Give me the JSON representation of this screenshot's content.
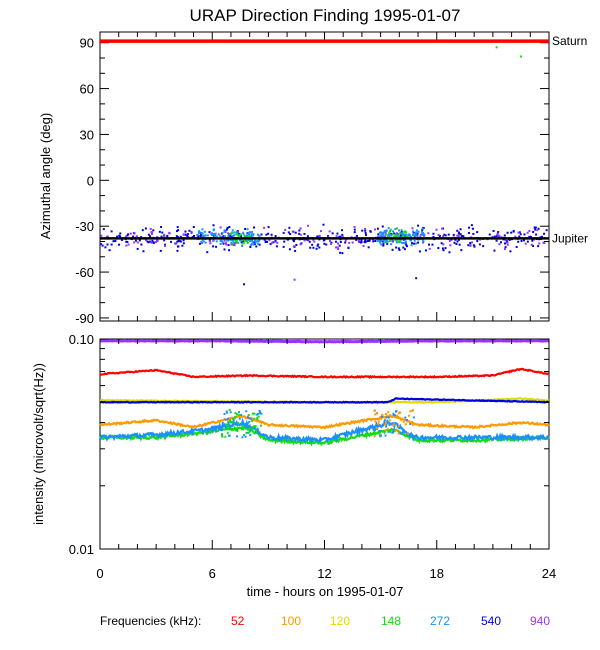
{
  "chart_data": {
    "title": "URAP Direction Finding  1995-01-07",
    "xlabel": "time - hours on 1995-01-07",
    "xlim": [
      0,
      24
    ],
    "xticks": [
      "0",
      "6",
      "12",
      "18",
      "24"
    ],
    "panels": [
      {
        "type": "scatter",
        "ylabel": "Azimuthal angle (deg)",
        "ylim": [
          -92,
          97
        ],
        "yticks": [
          "90",
          "60",
          "30",
          "0",
          "-30",
          "-60",
          "-90"
        ],
        "reference_lines": [
          {
            "label": "Saturn",
            "y": 91,
            "color": "#ff0000"
          },
          {
            "label": "Jupiter",
            "y": -38,
            "color": "#000000"
          }
        ],
        "scatter_clusters": [
          {
            "x_range": [
              0,
              24
            ],
            "y_center": -38,
            "spread": 7,
            "count": 420,
            "color": "#0000dd"
          },
          {
            "x_range": [
              0,
              24
            ],
            "y_center": -38,
            "spread": 6,
            "count": 160,
            "color": "#9933ff"
          },
          {
            "x_range": [
              5.2,
              8.6
            ],
            "y_center": -38,
            "spread": 5,
            "count": 120,
            "color": "#1a90ff"
          },
          {
            "x_range": [
              14.8,
              17.4
            ],
            "y_center": -37,
            "spread": 5,
            "count": 120,
            "color": "#1a90ff"
          },
          {
            "x_range": [
              7,
              8
            ],
            "y_center": -38,
            "spread": 4,
            "count": 30,
            "color": "#11dd11"
          },
          {
            "x_range": [
              15.3,
              16.4
            ],
            "y_center": -37,
            "spread": 4,
            "count": 25,
            "color": "#11dd11"
          }
        ],
        "outliers": [
          {
            "x": 21.2,
            "y": 87,
            "color": "#11dd11"
          },
          {
            "x": 22.5,
            "y": 81,
            "color": "#11dd11"
          },
          {
            "x": 7.7,
            "y": -68,
            "color": "#0000dd"
          },
          {
            "x": 10.4,
            "y": -65,
            "color": "#9933ff"
          },
          {
            "x": 16.9,
            "y": -64,
            "color": "#0000dd"
          }
        ]
      },
      {
        "type": "line",
        "ylabel": "intensity (microvolt/sqrt(Hz))",
        "yscale": "log",
        "ylim": [
          0.01,
          0.1
        ],
        "yticks": [
          "0.10",
          "0.01"
        ],
        "series": [
          {
            "name": "940",
            "color": "#9933ff",
            "x": [
              0,
              6,
              12,
              18,
              24
            ],
            "values": [
              0.098,
              0.098,
              0.097,
              0.098,
              0.098
            ]
          },
          {
            "name": "52",
            "color": "#ff0000",
            "x": [
              0,
              3,
              5,
              8,
              12,
              18,
              21,
              22.5,
              24
            ],
            "values": [
              0.068,
              0.071,
              0.066,
              0.067,
              0.066,
              0.066,
              0.067,
              0.072,
              0.068
            ]
          },
          {
            "name": "100",
            "color": "#ff9900",
            "x": [
              0,
              3,
              5,
              7.6,
              9,
              12,
              15.6,
              17,
              20,
              22.5,
              24
            ],
            "values": [
              0.039,
              0.041,
              0.038,
              0.043,
              0.039,
              0.038,
              0.043,
              0.039,
              0.038,
              0.04,
              0.039
            ]
          },
          {
            "name": "120",
            "color": "#dddd00",
            "x": [
              0,
              12,
              18,
              22.5,
              24
            ],
            "values": [
              0.051,
              0.05,
              0.05,
              0.052,
              0.051
            ]
          },
          {
            "name": "148",
            "color": "#11dd11",
            "x": [
              0,
              3,
              5.7,
              7.7,
              9,
              12,
              15.7,
              17,
              20,
              24
            ],
            "values": [
              0.034,
              0.034,
              0.036,
              0.038,
              0.033,
              0.032,
              0.037,
              0.033,
              0.033,
              0.034
            ]
          },
          {
            "name": "272",
            "color": "#1a90ff",
            "x": [
              0,
              3,
              5.8,
              7.6,
              9,
              12,
              15.6,
              16.8,
              20,
              24
            ],
            "values": [
              0.034,
              0.035,
              0.037,
              0.04,
              0.034,
              0.033,
              0.04,
              0.034,
              0.034,
              0.034
            ]
          },
          {
            "name": "540",
            "color": "#0000dd",
            "x": [
              0,
              12,
              15.4,
              15.8,
              24
            ],
            "values": [
              0.05,
              0.05,
              0.05,
              0.052,
              0.05
            ]
          }
        ]
      }
    ],
    "legend": {
      "title": "Frequencies (kHz):",
      "entries": [
        {
          "name": "52",
          "color": "#ff0000"
        },
        {
          "name": "100",
          "color": "#ff9900"
        },
        {
          "name": "120",
          "color": "#dddd00"
        },
        {
          "name": "148",
          "color": "#11dd11"
        },
        {
          "name": "272",
          "color": "#1a90ff"
        },
        {
          "name": "540",
          "color": "#0000dd"
        },
        {
          "name": "940",
          "color": "#9933ff"
        }
      ]
    }
  }
}
